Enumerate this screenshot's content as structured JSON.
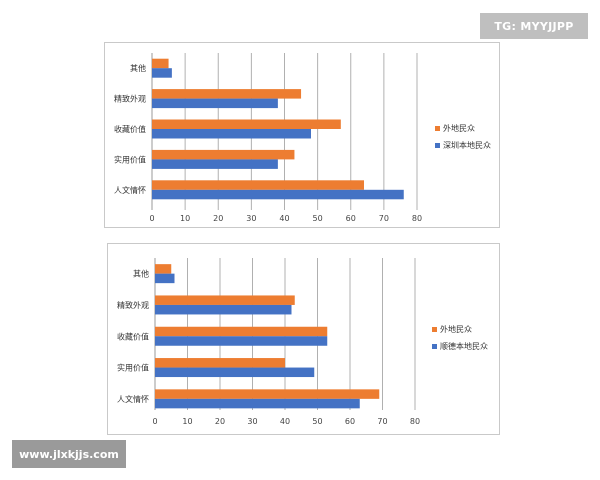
{
  "chart_data": [
    {
      "type": "bar",
      "orientation": "horizontal",
      "categories": [
        "其他",
        "精致外观",
        "收藏价值",
        "实用价值",
        "人文情怀"
      ],
      "series": [
        {
          "name": "外地民众",
          "color": "#ED7D31",
          "values": [
            5,
            45,
            57,
            43,
            64
          ]
        },
        {
          "name": "深圳本地民众",
          "color": "#4472C4",
          "values": [
            6,
            38,
            48,
            38,
            76
          ]
        }
      ],
      "xlim": [
        0,
        80
      ],
      "xticks": [
        0,
        10,
        20,
        30,
        40,
        50,
        60,
        70,
        80
      ],
      "grid": "vertical",
      "legend": "right",
      "title": "",
      "xlabel": "",
      "ylabel": ""
    },
    {
      "type": "bar",
      "orientation": "horizontal",
      "categories": [
        "其他",
        "精致外观",
        "收藏价值",
        "实用价值",
        "人文情怀"
      ],
      "series": [
        {
          "name": "外地民众",
          "color": "#ED7D31",
          "values": [
            5,
            43,
            53,
            40,
            69
          ]
        },
        {
          "name": "顺德本地民众",
          "color": "#4472C4",
          "values": [
            6,
            42,
            53,
            49,
            63
          ]
        }
      ],
      "xlim": [
        0,
        80
      ],
      "xticks": [
        0,
        10,
        20,
        30,
        40,
        50,
        60,
        70,
        80
      ],
      "grid": "vertical",
      "legend": "right",
      "title": "",
      "xlabel": "",
      "ylabel": ""
    }
  ],
  "watermarks": {
    "top": "TG: MYYJJPP",
    "bottom": "www.jlxkjjs.com"
  }
}
